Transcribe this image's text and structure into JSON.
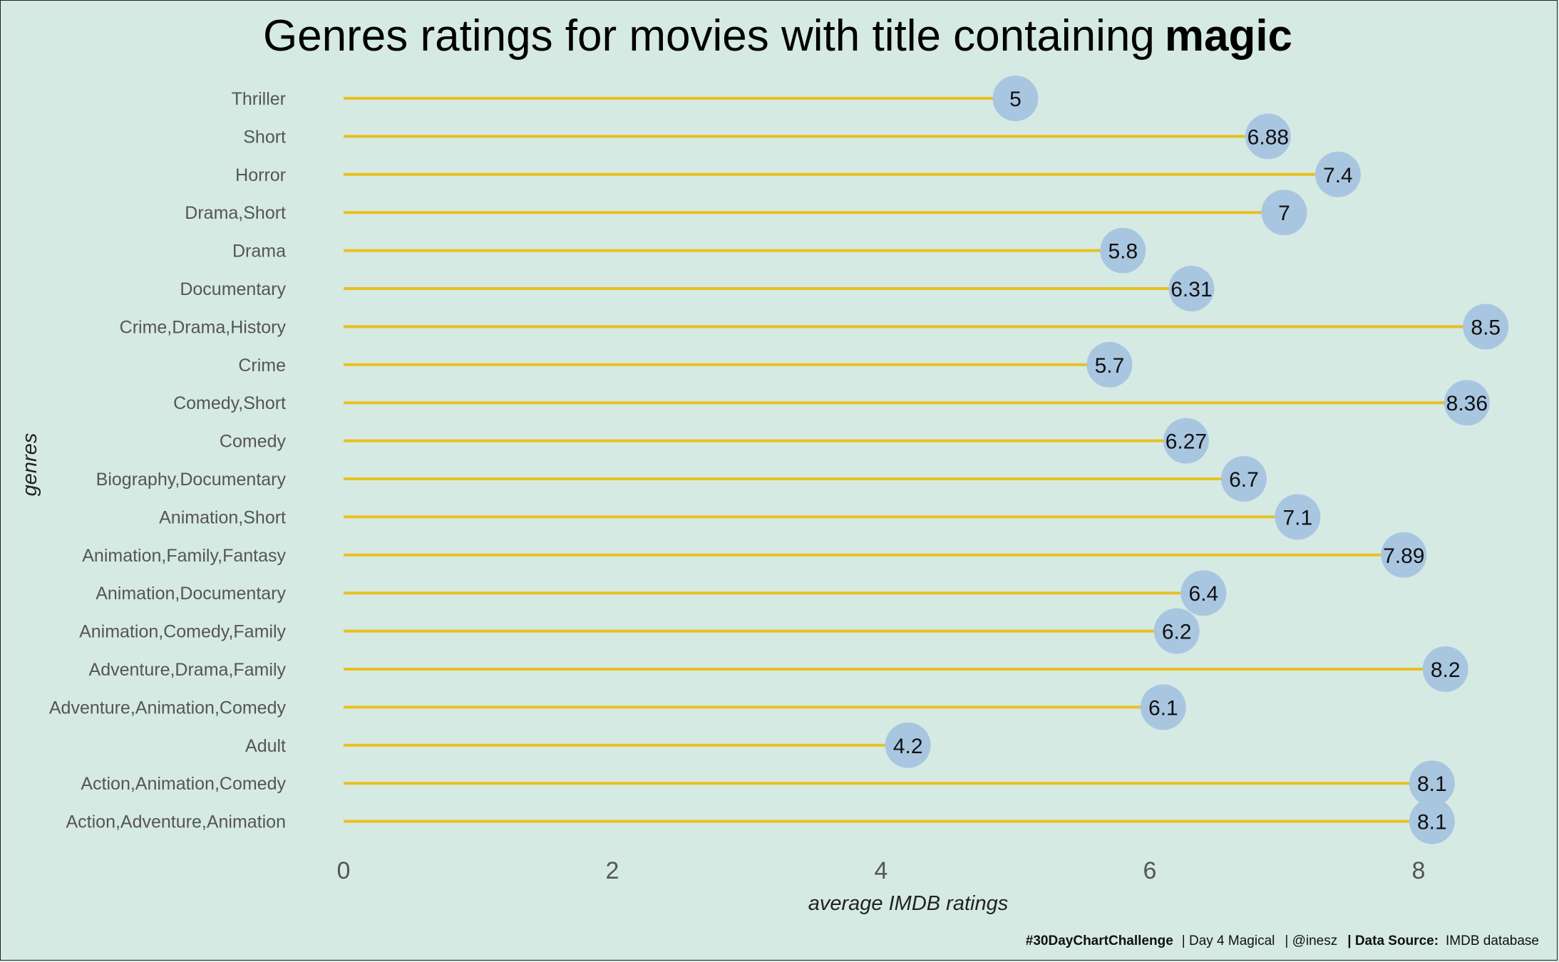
{
  "chart_data": {
    "type": "lollipop",
    "title": "Genres ratings for movies with title containing",
    "title_emphasis": "magic",
    "xlabel": "average IMDB ratings",
    "ylabel": "genres",
    "xlim": [
      0,
      8.7
    ],
    "xticks": [
      0,
      2,
      4,
      6,
      8
    ],
    "categories": [
      "Thriller",
      "Short",
      "Horror",
      "Drama,Short",
      "Drama",
      "Documentary",
      "Crime,Drama,History",
      "Crime",
      "Comedy,Short",
      "Comedy",
      "Biography,Documentary",
      "Animation,Short",
      "Animation,Family,Fantasy",
      "Animation,Documentary",
      "Animation,Comedy,Family",
      "Adventure,Drama,Family",
      "Adventure,Animation,Comedy",
      "Adult",
      "Action,Animation,Comedy",
      "Action,Adventure,Animation"
    ],
    "values": [
      5,
      6.88,
      7.4,
      7,
      5.8,
      6.31,
      8.5,
      5.7,
      8.36,
      6.27,
      6.7,
      7.1,
      7.89,
      6.4,
      6.2,
      8.2,
      6.1,
      4.2,
      8.1,
      8.1
    ],
    "stem_color": "#e8c020",
    "dot_color": "#a9c6e1",
    "background": "#d6eae4",
    "grid": false
  },
  "caption": {
    "hashtag": "#30DayChartChallenge",
    "day": "| Day 4 Magical",
    "handle": "| @inesz",
    "source_label": "| Data Source:",
    "source": "IMDB database"
  }
}
